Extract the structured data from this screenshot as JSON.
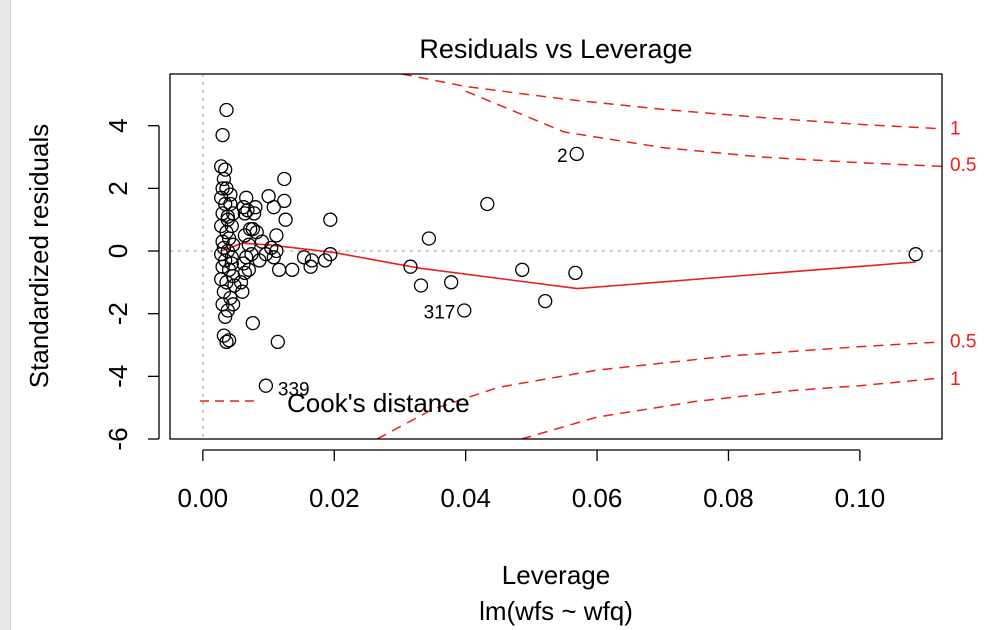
{
  "chart_data": {
    "type": "scatter",
    "title": "Residuals vs Leverage",
    "xlabel": "Leverage",
    "subtitle": "lm(wfs ~ wfq)",
    "ylabel": "Standardized residuals",
    "xlim": [
      -0.005,
      0.1125
    ],
    "ylim": [
      -6.0,
      5.65
    ],
    "x_ticks": [
      {
        "value": 0.0,
        "label": "0.00"
      },
      {
        "value": 0.02,
        "label": "0.02"
      },
      {
        "value": 0.04,
        "label": "0.04"
      },
      {
        "value": 0.06,
        "label": "0.06"
      },
      {
        "value": 0.08,
        "label": "0.08"
      },
      {
        "value": 0.1,
        "label": "0.10"
      }
    ],
    "y_ticks": [
      {
        "value": 4,
        "label": "4"
      },
      {
        "value": 2,
        "label": "2"
      },
      {
        "value": 0,
        "label": "0"
      },
      {
        "value": -2,
        "label": "-2"
      },
      {
        "value": -4,
        "label": "-4"
      },
      {
        "value": -6,
        "label": "-6"
      }
    ],
    "points": [
      [
        0.0036,
        4.5
      ],
      [
        0.003,
        3.7
      ],
      [
        0.0028,
        2.7
      ],
      [
        0.0034,
        2.6
      ],
      [
        0.0032,
        2.3
      ],
      [
        0.003,
        2.0
      ],
      [
        0.0036,
        2.0
      ],
      [
        0.0028,
        1.7
      ],
      [
        0.0034,
        1.5
      ],
      [
        0.0042,
        1.5
      ],
      [
        0.0046,
        1.2
      ],
      [
        0.003,
        1.2
      ],
      [
        0.0038,
        1.0
      ],
      [
        0.0044,
        0.8
      ],
      [
        0.0028,
        0.8
      ],
      [
        0.0036,
        0.6
      ],
      [
        0.004,
        0.4
      ],
      [
        0.003,
        0.3
      ],
      [
        0.0046,
        0.2
      ],
      [
        0.0032,
        0.1
      ],
      [
        0.0038,
        0.0
      ],
      [
        0.0028,
        -0.1
      ],
      [
        0.0044,
        -0.2
      ],
      [
        0.0034,
        -0.3
      ],
      [
        0.003,
        -0.5
      ],
      [
        0.004,
        -0.6
      ],
      [
        0.0046,
        -0.8
      ],
      [
        0.0028,
        -0.9
      ],
      [
        0.0036,
        -1.0
      ],
      [
        0.0032,
        -1.3
      ],
      [
        0.0042,
        -1.5
      ],
      [
        0.003,
        -1.7
      ],
      [
        0.0038,
        -1.9
      ],
      [
        0.0034,
        -2.1
      ],
      [
        0.0032,
        -2.7
      ],
      [
        0.0036,
        -2.9
      ],
      [
        0.004,
        -2.85
      ],
      [
        0.0042,
        1.8
      ],
      [
        0.0038,
        1.1
      ],
      [
        0.0044,
        -0.4
      ],
      [
        0.0048,
        -1.1
      ],
      [
        0.0046,
        -1.7
      ],
      [
        0.0062,
        1.4
      ],
      [
        0.0066,
        1.7
      ],
      [
        0.0064,
        1.2
      ],
      [
        0.0068,
        1.3
      ],
      [
        0.0072,
        0.7
      ],
      [
        0.0064,
        0.5
      ],
      [
        0.007,
        0.2
      ],
      [
        0.0066,
        -0.2
      ],
      [
        0.0062,
        -0.4
      ],
      [
        0.007,
        -0.6
      ],
      [
        0.0064,
        -0.7
      ],
      [
        0.006,
        -1.3
      ],
      [
        0.0058,
        -1.0
      ],
      [
        0.0076,
        0.7
      ],
      [
        0.0078,
        1.2
      ],
      [
        0.008,
        1.4
      ],
      [
        0.0082,
        0.6
      ],
      [
        0.0074,
        -0.1
      ],
      [
        0.0076,
        -2.3
      ],
      [
        0.01,
        1.75
      ],
      [
        0.0108,
        1.4
      ],
      [
        0.0124,
        2.3
      ],
      [
        0.0124,
        1.6
      ],
      [
        0.0126,
        1.0
      ],
      [
        0.0112,
        0.5
      ],
      [
        0.0104,
        0.1
      ],
      [
        0.0112,
        0.0
      ],
      [
        0.0116,
        -0.6
      ],
      [
        0.0136,
        -0.6
      ],
      [
        0.0108,
        -0.2
      ],
      [
        0.009,
        0.3
      ],
      [
        0.0096,
        -0.1
      ],
      [
        0.0086,
        -0.3
      ],
      [
        0.0114,
        -2.9
      ],
      [
        0.0096,
        -4.3
      ],
      [
        0.0154,
        -0.2
      ],
      [
        0.0164,
        -0.5
      ],
      [
        0.0166,
        -0.3
      ],
      [
        0.0186,
        -0.3
      ],
      [
        0.0194,
        -0.1
      ],
      [
        0.0194,
        1.0
      ],
      [
        0.0316,
        -0.5
      ],
      [
        0.0332,
        -1.1
      ],
      [
        0.0344,
        0.4
      ],
      [
        0.0378,
        -1.0
      ],
      [
        0.0398,
        -1.9
      ],
      [
        0.0433,
        1.5
      ],
      [
        0.0486,
        -0.6
      ],
      [
        0.0521,
        -1.6
      ],
      [
        0.0569,
        3.1
      ],
      [
        0.0567,
        -0.7
      ],
      [
        0.1085,
        -0.1
      ]
    ],
    "point_labels": [
      {
        "x": 0.0569,
        "y": 3.1,
        "label": "2"
      },
      {
        "x": 0.0398,
        "y": -1.9,
        "label": "317"
      },
      {
        "x": 0.0096,
        "y": -4.3,
        "label": "339"
      }
    ],
    "smoother": [
      [
        0.0028,
        0.0
      ],
      [
        0.006,
        0.25
      ],
      [
        0.01,
        0.2
      ],
      [
        0.02,
        -0.05
      ],
      [
        0.033,
        -0.55
      ],
      [
        0.057,
        -1.2
      ],
      [
        0.1085,
        -0.35
      ]
    ],
    "cooks_distance": [
      {
        "level": "1",
        "side": "upper",
        "points": [
          [
            0.0303,
            5.65
          ],
          [
            0.04,
            5.25
          ],
          [
            0.055,
            4.85
          ],
          [
            0.07,
            4.52
          ],
          [
            0.085,
            4.26
          ],
          [
            0.1,
            4.04
          ],
          [
            0.1125,
            3.9
          ]
        ]
      },
      {
        "level": "0.5",
        "side": "upper",
        "points": [
          [
            0.04,
            5.1
          ],
          [
            0.055,
            3.8
          ],
          [
            0.07,
            3.3
          ],
          [
            0.085,
            3.0
          ],
          [
            0.1,
            2.82
          ],
          [
            0.1125,
            2.7
          ]
        ]
      },
      {
        "level": "0.5",
        "side": "lower",
        "points": [
          [
            0.0265,
            -6.0
          ],
          [
            0.035,
            -5.05
          ],
          [
            0.045,
            -4.35
          ],
          [
            0.06,
            -3.8
          ],
          [
            0.08,
            -3.35
          ],
          [
            0.1,
            -3.05
          ],
          [
            0.1125,
            -2.9
          ]
        ]
      },
      {
        "level": "1",
        "side": "lower",
        "points": [
          [
            0.0485,
            -6.0
          ],
          [
            0.06,
            -5.3
          ],
          [
            0.075,
            -4.8
          ],
          [
            0.09,
            -4.45
          ],
          [
            0.1,
            -4.3
          ],
          [
            0.1125,
            -4.05
          ]
        ]
      }
    ],
    "cook_labels": [
      {
        "text": "1",
        "y": 3.95
      },
      {
        "text": "0.5",
        "y": 2.78
      },
      {
        "text": "0.5",
        "y": -2.85
      },
      {
        "text": "1",
        "y": -4.05
      }
    ],
    "legend": {
      "label": "Cook's distance",
      "position": "bottom-left"
    },
    "reference_lines": {
      "h": 0,
      "v": 0
    },
    "colors": {
      "points": "#000000",
      "smoother": "#e8201e",
      "cooks": "#e8201e",
      "reference": "#b0b0b0",
      "axes": "#000000"
    }
  }
}
